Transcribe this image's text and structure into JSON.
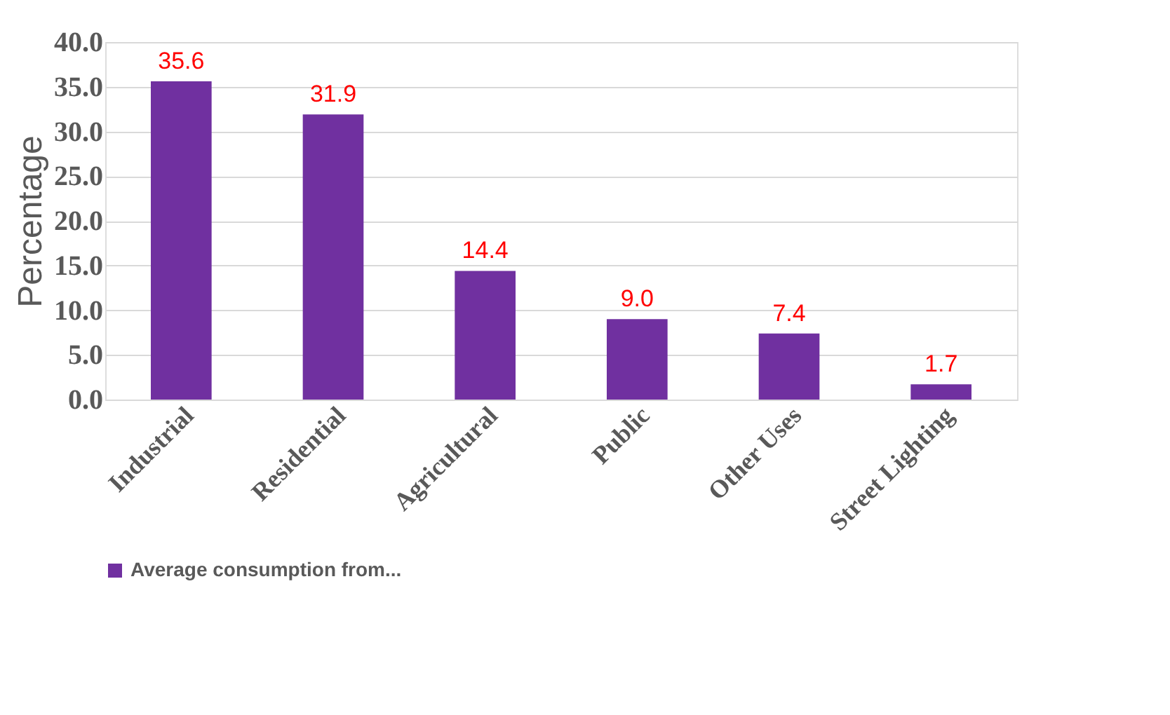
{
  "chart_data": {
    "type": "bar",
    "ylabel": "Percentage",
    "categories": [
      "Industrial",
      "Residential",
      "Agricultural",
      "Public",
      "Other Uses",
      "Street Lighting"
    ],
    "series": [
      {
        "name": "Average consumption from...",
        "color": "#7030a0",
        "values": [
          35.6,
          31.9,
          14.4,
          9.0,
          7.4,
          1.7
        ],
        "value_labels": [
          "35.6",
          "31.9",
          "14.4",
          "9.0",
          "7.4",
          "1.7"
        ]
      }
    ],
    "ylim": [
      0,
      40
    ],
    "yticks": [
      {
        "value": 0,
        "label": "0.0"
      },
      {
        "value": 5,
        "label": "5.0"
      },
      {
        "value": 10,
        "label": "10.0"
      },
      {
        "value": 15,
        "label": "15.0"
      },
      {
        "value": 20,
        "label": "20.0"
      },
      {
        "value": 25,
        "label": "25.0"
      },
      {
        "value": 30,
        "label": "30.0"
      },
      {
        "value": 35,
        "label": "35.0"
      },
      {
        "value": 40,
        "label": "40.0"
      }
    ],
    "grid": "y",
    "legend": "bottom"
  }
}
